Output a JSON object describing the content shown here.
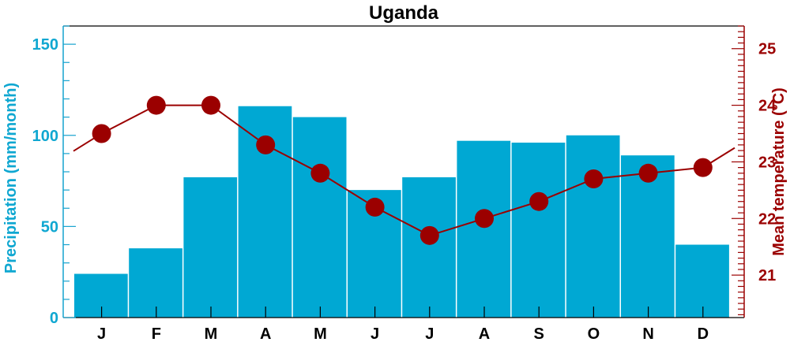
{
  "chart_data": {
    "type": "bar",
    "title": "Uganda",
    "categories": [
      "J",
      "F",
      "M",
      "A",
      "M",
      "J",
      "J",
      "A",
      "S",
      "O",
      "N",
      "D"
    ],
    "series": [
      {
        "type": "bar",
        "axis": "left",
        "color": "#00a8d3",
        "values": [
          24,
          38,
          77,
          116,
          110,
          70,
          77,
          97,
          96,
          100,
          89,
          40
        ]
      },
      {
        "type": "line",
        "axis": "right",
        "color": "#9b0000",
        "values": [
          23.5,
          24.0,
          24.0,
          23.3,
          22.8,
          22.2,
          21.7,
          22.0,
          22.3,
          22.7,
          22.8,
          22.9
        ]
      }
    ],
    "ylabel": "Precipitation (mm/month)",
    "ylabel_right": "Mean temperature (°C)",
    "ylim": [
      0,
      160
    ],
    "ylim_right": [
      20.25,
      25.4
    ],
    "yticks": [
      0,
      50,
      100,
      150
    ],
    "yticks_right": [
      21,
      22,
      23,
      24,
      25
    ],
    "legend": "none",
    "grid": false
  }
}
